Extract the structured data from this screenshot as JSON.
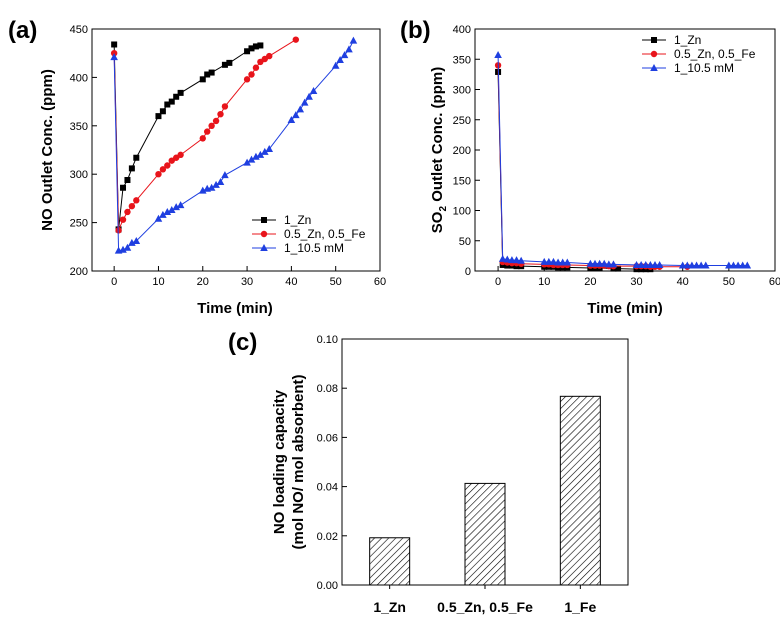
{
  "colors": {
    "black": "#000000",
    "red": "#e8141b",
    "blue": "#1f3fe0"
  },
  "chart_data": [
    {
      "id": "a",
      "panel_label": "(a)",
      "type": "line",
      "title": "",
      "xlabel": "Time (min)",
      "ylabel": "NO Outlet Conc. (ppm)",
      "xlim": [
        -5,
        60
      ],
      "ylim": [
        200,
        450
      ],
      "xticks": [
        0,
        10,
        20,
        30,
        40,
        50,
        60
      ],
      "yticks": [
        200,
        250,
        300,
        350,
        400,
        450
      ],
      "legend_position": "bottom-right",
      "series": [
        {
          "name": "1_Zn",
          "color": "#000000",
          "marker": "square",
          "x": [
            0,
            1,
            2,
            3,
            4,
            5,
            10,
            11,
            12,
            13,
            14,
            15,
            20,
            21,
            22,
            25,
            26,
            30,
            31,
            32,
            33
          ],
          "y": [
            434,
            243,
            286,
            294,
            306,
            317,
            360,
            365,
            372,
            375,
            380,
            384,
            398,
            403,
            405,
            413,
            415,
            427,
            430,
            432,
            433
          ]
        },
        {
          "name": "0.5_Zn, 0.5_Fe",
          "color": "#e8141b",
          "marker": "circle",
          "x": [
            0,
            1,
            2,
            3,
            4,
            5,
            10,
            11,
            12,
            13,
            14,
            15,
            20,
            21,
            22,
            23,
            24,
            25,
            30,
            31,
            32,
            33,
            34,
            35,
            41
          ],
          "y": [
            425,
            242,
            253,
            261,
            267,
            273,
            300,
            305,
            309,
            314,
            317,
            320,
            337,
            344,
            350,
            355,
            362,
            370,
            398,
            403,
            410,
            416,
            419,
            422,
            439
          ]
        },
        {
          "name": "1_10.5 mM",
          "color": "#1f3fe0",
          "marker": "triangle",
          "x": [
            0,
            1,
            2,
            3,
            4,
            5,
            10,
            11,
            12,
            13,
            14,
            15,
            20,
            21,
            22,
            23,
            24,
            25,
            30,
            31,
            32,
            33,
            34,
            35,
            40,
            41,
            42,
            43,
            44,
            45,
            50,
            51,
            52,
            53,
            54
          ],
          "y": [
            421,
            221,
            222,
            224,
            229,
            231,
            254,
            258,
            261,
            263,
            266,
            268,
            283,
            285,
            286,
            289,
            292,
            299,
            312,
            315,
            318,
            320,
            323,
            326,
            356,
            361,
            367,
            374,
            380,
            386,
            412,
            418,
            423,
            429,
            438
          ]
        }
      ]
    },
    {
      "id": "b",
      "panel_label": "(b)",
      "type": "line",
      "title": "",
      "xlabel": "Time (min)",
      "ylabel_main": "SO",
      "ylabel_sub": "2",
      "ylabel_rest": " Outlet Conc. (ppm)",
      "xlim": [
        -5,
        60
      ],
      "ylim": [
        0,
        400
      ],
      "xticks": [
        0,
        10,
        20,
        30,
        40,
        50,
        60
      ],
      "yticks": [
        0,
        50,
        100,
        150,
        200,
        250,
        300,
        350,
        400
      ],
      "legend_position": "top-right",
      "series": [
        {
          "name": "1_Zn",
          "color": "#000000",
          "marker": "square",
          "x": [
            0,
            1,
            2,
            3,
            4,
            5,
            10,
            11,
            12,
            13,
            14,
            15,
            20,
            21,
            22,
            25,
            26,
            30,
            31,
            32,
            33
          ],
          "y": [
            329,
            10,
            9,
            9,
            8,
            8,
            7,
            7,
            7,
            6,
            6,
            6,
            5,
            5,
            5,
            4,
            4,
            3,
            3,
            3,
            3
          ]
        },
        {
          "name": "0.5_Zn, 0.5_Fe",
          "color": "#e8141b",
          "marker": "circle",
          "x": [
            0,
            1,
            2,
            3,
            4,
            5,
            10,
            11,
            12,
            13,
            14,
            15,
            20,
            21,
            22,
            23,
            24,
            25,
            30,
            31,
            32,
            33,
            34,
            35,
            41
          ],
          "y": [
            340,
            15,
            14,
            13,
            13,
            12,
            11,
            11,
            10,
            10,
            10,
            10,
            9,
            9,
            9,
            9,
            8,
            8,
            8,
            8,
            8,
            7,
            7,
            7,
            7
          ]
        },
        {
          "name": "1_10.5 mM",
          "color": "#1f3fe0",
          "marker": "triangle",
          "x": [
            0,
            1,
            2,
            3,
            4,
            5,
            10,
            11,
            12,
            13,
            14,
            15,
            20,
            21,
            22,
            23,
            24,
            25,
            30,
            31,
            32,
            33,
            34,
            35,
            40,
            41,
            42,
            43,
            44,
            45,
            50,
            51,
            52,
            53,
            54
          ],
          "y": [
            357,
            20,
            19,
            18,
            18,
            17,
            15,
            15,
            15,
            14,
            14,
            14,
            12,
            12,
            12,
            12,
            11,
            11,
            10,
            10,
            10,
            10,
            10,
            10,
            9,
            9,
            9,
            9,
            9,
            9,
            9,
            9,
            9,
            9,
            9
          ]
        }
      ]
    },
    {
      "id": "c",
      "panel_label": "(c)",
      "type": "bar",
      "title": "",
      "xlabel": "",
      "ylabel_line1": "NO loading capacity",
      "ylabel_line2": "(mol NO/ mol absorbent)",
      "categories": [
        "1_Zn",
        "0.5_Zn, 0.5_Fe",
        "1_Fe"
      ],
      "values": [
        0.0192,
        0.0413,
        0.0767
      ],
      "ylim": [
        0,
        0.1
      ],
      "yticks": [
        0,
        0.02,
        0.04,
        0.06,
        0.08,
        0.1
      ],
      "ytick_labels": [
        "0.00",
        "0.02",
        "0.04",
        "0.06",
        "0.08",
        "0.10"
      ],
      "bar_fill": "hatched"
    }
  ]
}
